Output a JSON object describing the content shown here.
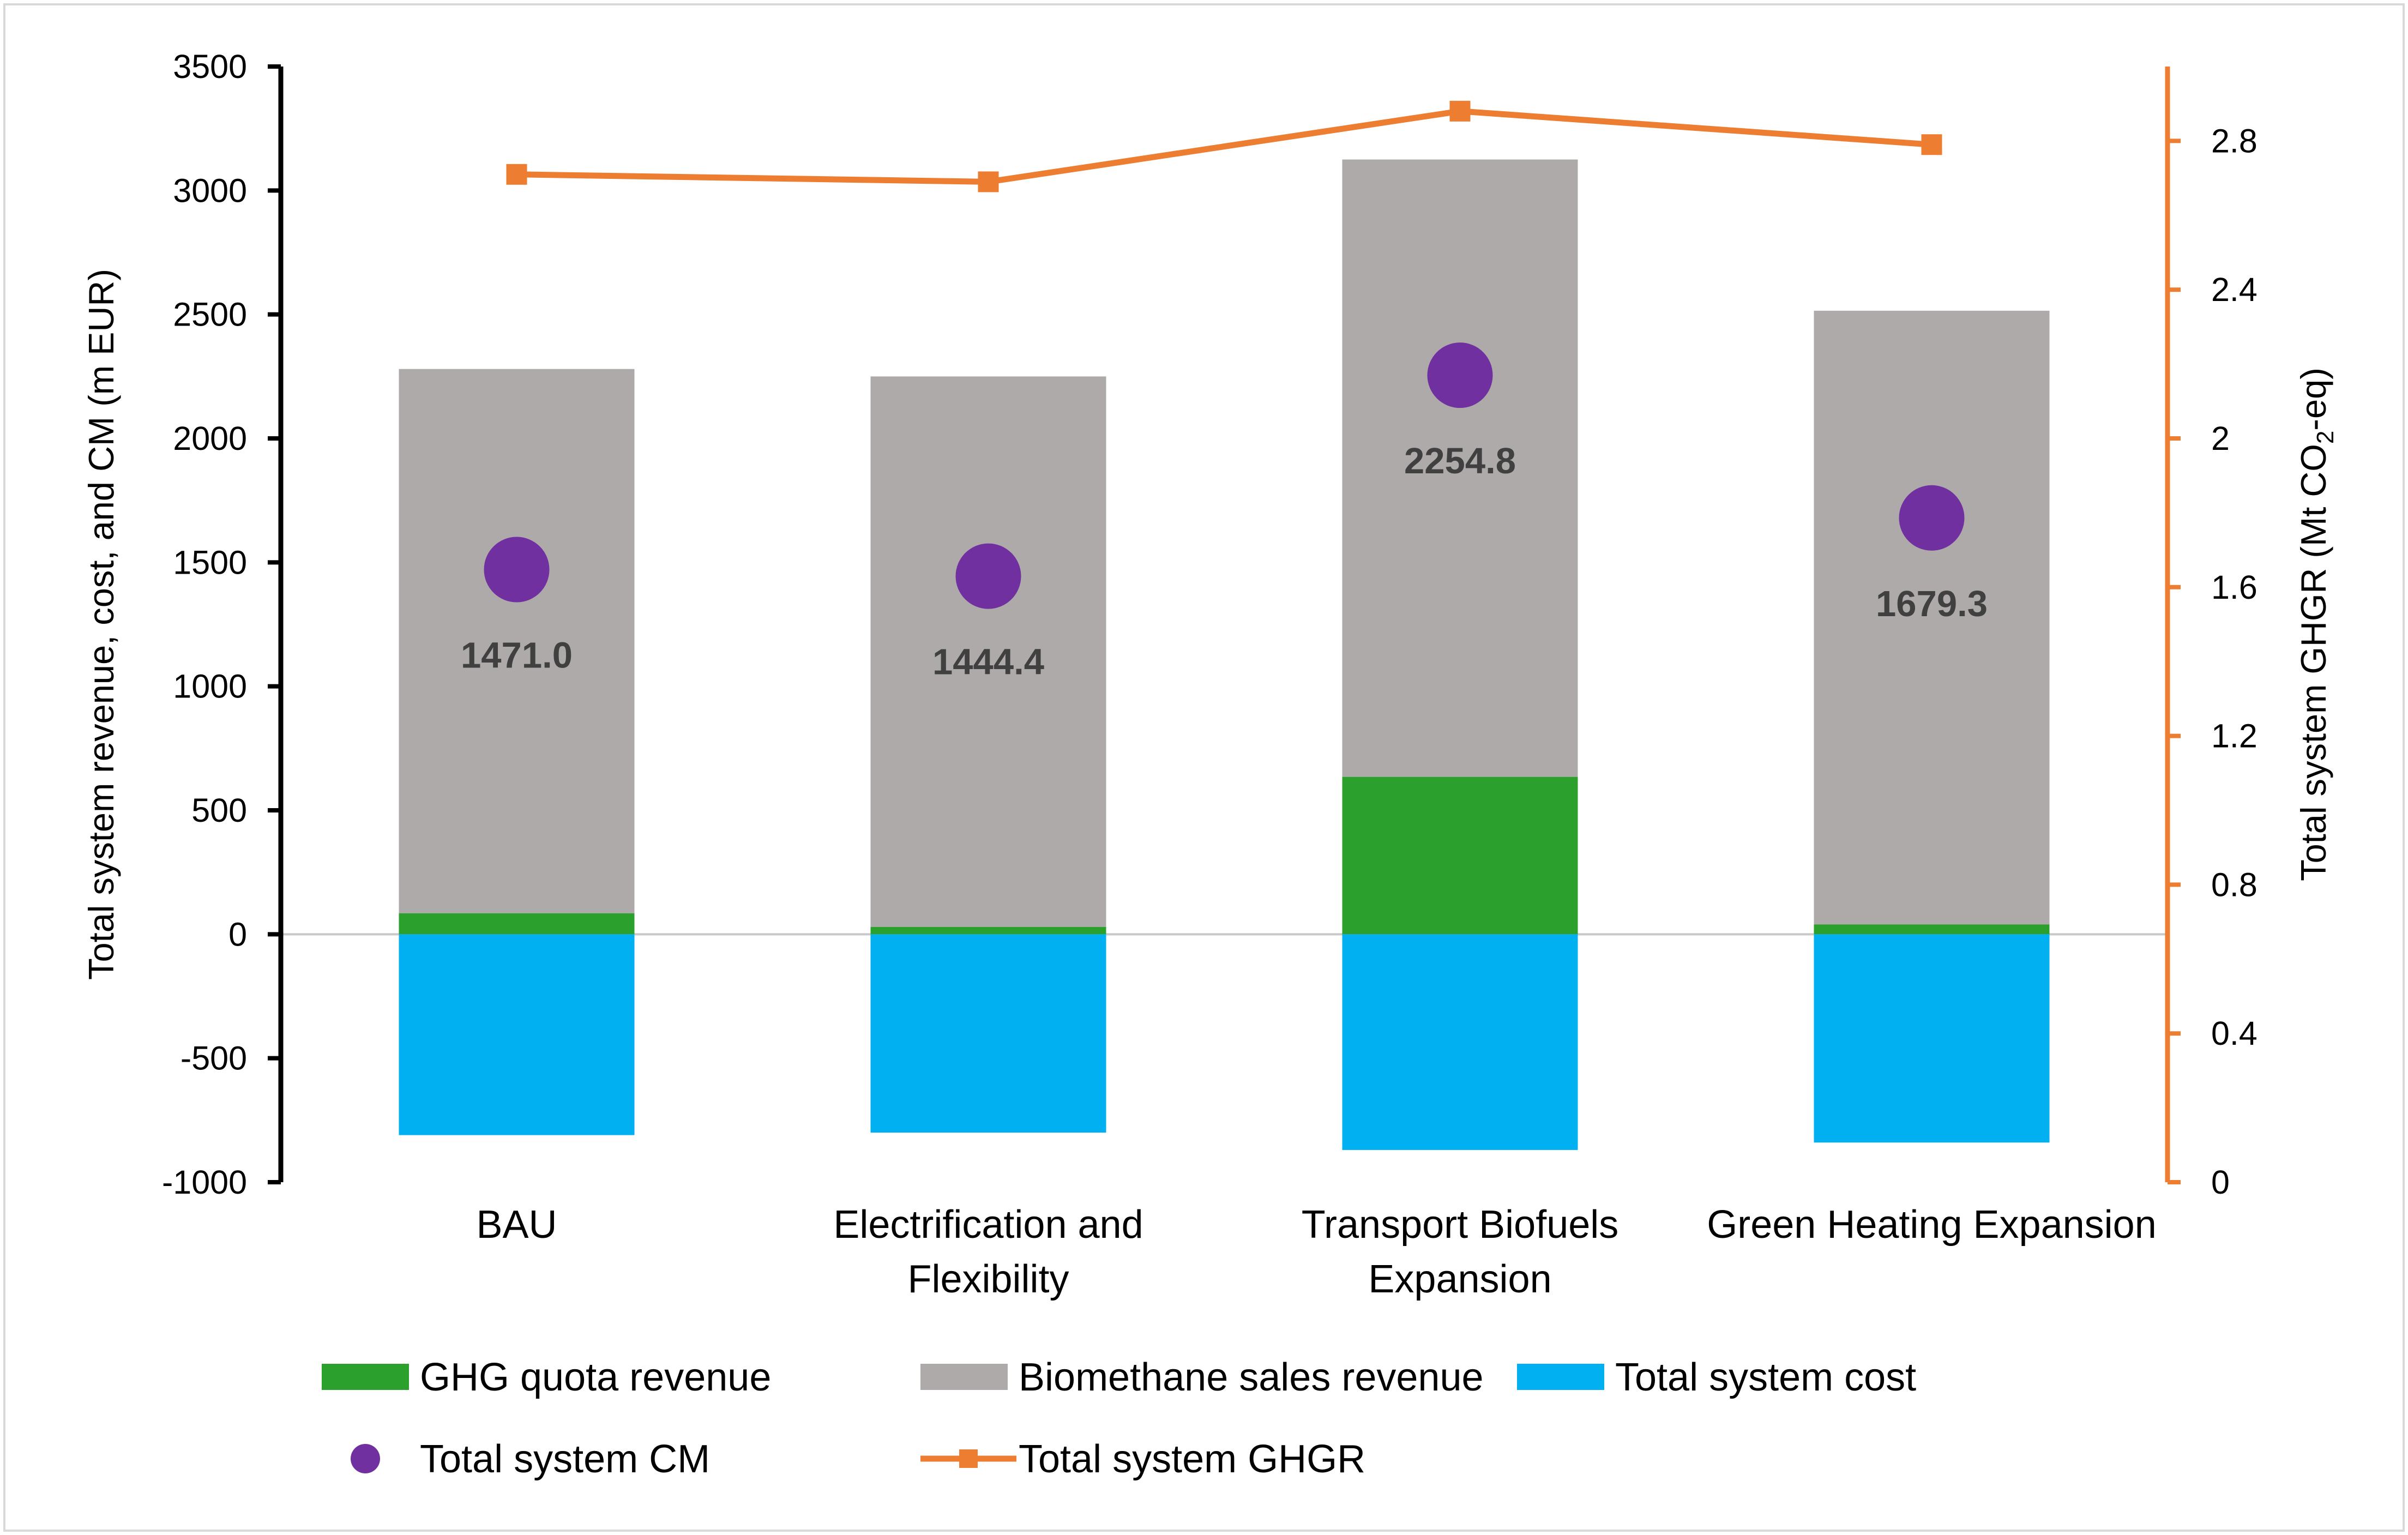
{
  "chart_data": {
    "type": "bar",
    "stacked": true,
    "title": "",
    "categories": [
      [
        "BAU"
      ],
      [
        "Electrification and",
        "Flexibility"
      ],
      [
        "Transport Biofuels",
        "Expansion"
      ],
      [
        "Green Heating Expansion"
      ]
    ],
    "ylabel": "Total system revenue, cost, and CM (m EUR)",
    "ylim": [
      -1000,
      3500
    ],
    "yticks": [
      -1000,
      -500,
      0,
      500,
      1000,
      1500,
      2000,
      2500,
      3000,
      3500
    ],
    "y2label_parts": [
      "Total system GHGR (Mt CO",
      "2",
      "-eq)"
    ],
    "y2lim": [
      0,
      3.0
    ],
    "y2ticks": [
      0,
      0.4,
      0.8,
      1.2,
      1.6,
      2.0,
      2.4,
      2.8
    ],
    "y2tick_labels": [
      "0",
      "0.4",
      "0.8",
      "1.2",
      "1.6",
      "2",
      "2.4",
      "2.8"
    ],
    "series": [
      {
        "name": "GHG quota revenue",
        "type": "bar",
        "axis": "left",
        "color": "#2ca02c",
        "values": [
          85,
          30,
          635,
          40
        ]
      },
      {
        "name": "Biomethane sales revenue",
        "type": "bar",
        "axis": "left",
        "color": "#aeaaaa",
        "values": [
          2195,
          2220,
          2490,
          2475
        ]
      },
      {
        "name": "Total system cost",
        "type": "bar",
        "axis": "left",
        "color": "#00b0f0",
        "values": [
          -810,
          -800,
          -870,
          -840
        ]
      },
      {
        "name": "Total system CM",
        "type": "scatter",
        "axis": "left",
        "color": "#7030a0",
        "values": [
          1471.0,
          1444.4,
          2254.8,
          1679.3
        ],
        "labels": [
          "1471.0",
          "1444.4",
          "2254.8",
          "1679.3"
        ]
      },
      {
        "name": "Total system GHGR",
        "type": "line",
        "axis": "right",
        "color": "#ed7d31",
        "values": [
          2.71,
          2.69,
          2.88,
          2.79
        ]
      }
    ],
    "legend": {
      "position": "bottom",
      "rows": [
        [
          "GHG quota revenue",
          "Biomethane sales revenue",
          "Total system cost"
        ],
        [
          "Total system CM",
          "Total system GHGR"
        ]
      ]
    },
    "grid": false
  }
}
